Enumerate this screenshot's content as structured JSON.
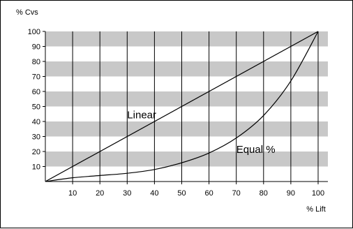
{
  "chart_data": {
    "type": "line",
    "ylabel": "% Cvs",
    "xlabel": "% Lift",
    "xlim": [
      0,
      100
    ],
    "ylim": [
      0,
      100
    ],
    "x_ticks": [
      10,
      20,
      30,
      40,
      50,
      60,
      70,
      80,
      90,
      100
    ],
    "y_ticks": [
      10,
      20,
      30,
      40,
      50,
      60,
      70,
      80,
      90,
      100
    ],
    "bands": [
      [
        10,
        20
      ],
      [
        30,
        40
      ],
      [
        50,
        60
      ],
      [
        70,
        80
      ],
      [
        90,
        100
      ]
    ],
    "grid": "vertical lines at each x tick; alternating gray horizontal bands",
    "series": [
      {
        "name": "Linear",
        "x": [
          0,
          100
        ],
        "y": [
          0,
          100
        ]
      },
      {
        "name": "Equal %",
        "x": [
          0,
          10,
          20,
          30,
          40,
          50,
          60,
          70,
          80,
          90,
          100
        ],
        "y": [
          0,
          2.5,
          4,
          5.5,
          8,
          12.5,
          19,
          29,
          44,
          67,
          100
        ]
      }
    ],
    "annotations": [
      {
        "text": "Linear",
        "x": 30,
        "y": 42,
        "series": "Linear"
      },
      {
        "text": "Equal %",
        "x": 70,
        "y": 19,
        "series": "Equal %"
      }
    ],
    "colors": {
      "band": "#c8c8c8",
      "line": "#000000",
      "background": "#ffffff"
    }
  }
}
